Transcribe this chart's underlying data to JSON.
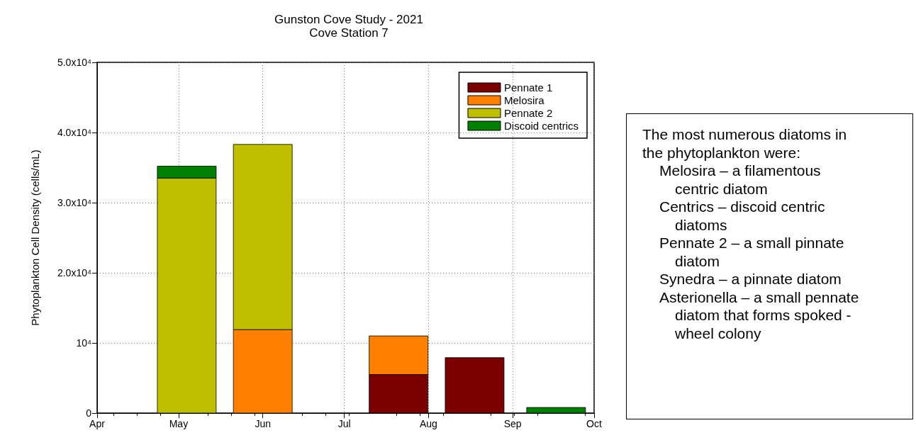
{
  "chart_data": {
    "type": "bar",
    "title": "Gunston Cove Study - 2021",
    "subtitle": "Cove Station 7",
    "ylabel": "Phytoplankton Cell Density (cells/mL)",
    "x": [
      "2021-05-04",
      "2021-06-01",
      "2021-07-21",
      "2021-08-18",
      "2021-09-17"
    ],
    "stacked": true,
    "series": [
      {
        "name": "Pennate 1",
        "color": "#7b0000",
        "values": [
          null,
          null,
          5500,
          7900,
          null
        ]
      },
      {
        "name": "Melosira",
        "color": "#ff8000",
        "values": [
          null,
          11900,
          5500,
          null,
          null
        ]
      },
      {
        "name": "Pennate 2",
        "color": "#bfbf00",
        "values": [
          33500,
          26400,
          null,
          null,
          null
        ]
      },
      {
        "name": "Discoid centrics",
        "color": "#008000",
        "values": [
          1700,
          null,
          null,
          null,
          800
        ]
      }
    ],
    "xlim": [
      "2021-04-01",
      "2021-10-01"
    ],
    "xticks": [
      {
        "value": "2021-04-01",
        "label": "Apr"
      },
      {
        "value": "2021-05-01",
        "label": "May"
      },
      {
        "value": "2021-06-01",
        "label": "Jun"
      },
      {
        "value": "2021-07-01",
        "label": "Jul"
      },
      {
        "value": "2021-08-01",
        "label": "Aug"
      },
      {
        "value": "2021-09-01",
        "label": "Sep"
      },
      {
        "value": "2021-10-01",
        "label": "Oct"
      }
    ],
    "ylim": [
      0,
      50000
    ],
    "yticks": [
      {
        "value": 0,
        "label": "0"
      },
      {
        "value": 10000,
        "label": "10⁴"
      },
      {
        "value": 20000,
        "label": "2.0x10⁴"
      },
      {
        "value": 30000,
        "label": "3.0x10⁴"
      },
      {
        "value": 40000,
        "label": "4.0x10⁴"
      },
      {
        "value": 50000,
        "label": "5.0x10⁴"
      }
    ],
    "grid": true,
    "legend": "top right",
    "annotations": [
      "The most numerous diatoms in the phytoplankton were:",
      "Melosira – a filamentous centric diatom",
      "Centrics – discoid centric diatoms",
      "Pennate 2 – a small pinnate diatom",
      "Synedra – a pinnate diatom",
      "Asterionella – a small pennate diatom that forms spoked -wheel colony"
    ]
  }
}
